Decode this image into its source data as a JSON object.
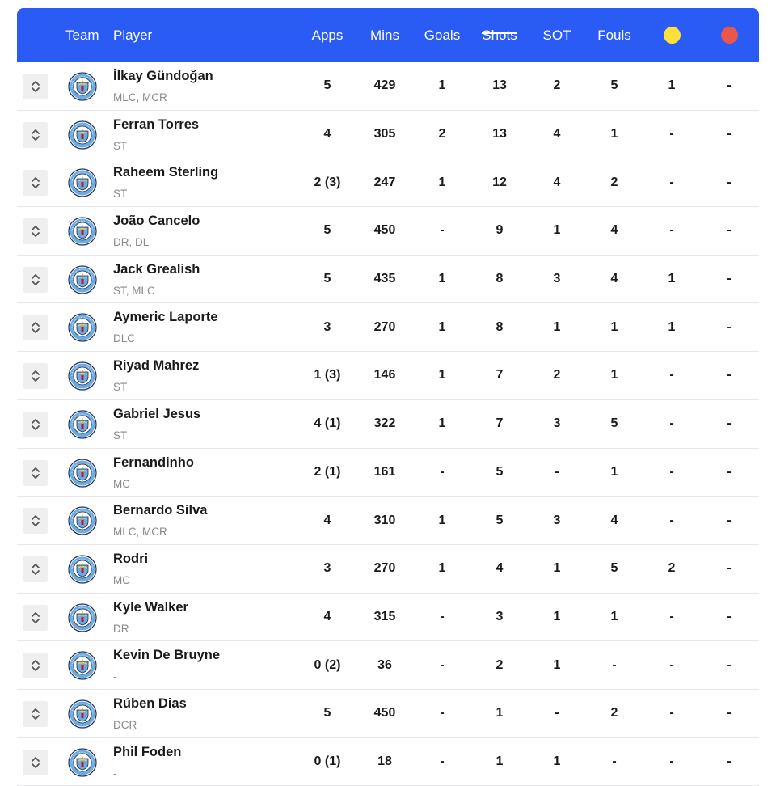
{
  "header": {
    "team": "Team",
    "player": "Player",
    "apps": "Apps",
    "mins": "Mins",
    "goals": "Goals",
    "shots": "Shots",
    "sot": "SOT",
    "fouls": "Fouls",
    "yellow_color": "#ffe03a",
    "red_color": "#e8574a"
  },
  "colors": {
    "header_bg": "#2a5bf5",
    "sort_btn_bg": "#efefef",
    "position_text": "#8a8a8a"
  },
  "icons": {
    "sort": "sort-updown-icon",
    "team_crest": "manchester-city-crest-icon"
  },
  "rows": [
    {
      "name": "İlkay Gündoğan",
      "pos": "MLC, MCR",
      "apps": "5",
      "mins": "429",
      "goals": "1",
      "shots": "13",
      "sot": "2",
      "fouls": "5",
      "yc": "1",
      "rc": "-"
    },
    {
      "name": "Ferran Torres",
      "pos": "ST",
      "apps": "4",
      "mins": "305",
      "goals": "2",
      "shots": "13",
      "sot": "4",
      "fouls": "1",
      "yc": "-",
      "rc": "-"
    },
    {
      "name": "Raheem Sterling",
      "pos": "ST",
      "apps": "2 (3)",
      "mins": "247",
      "goals": "1",
      "shots": "12",
      "sot": "4",
      "fouls": "2",
      "yc": "-",
      "rc": "-"
    },
    {
      "name": "João Cancelo",
      "pos": "DR, DL",
      "apps": "5",
      "mins": "450",
      "goals": "-",
      "shots": "9",
      "sot": "1",
      "fouls": "4",
      "yc": "-",
      "rc": "-"
    },
    {
      "name": "Jack Grealish",
      "pos": "ST, MLC",
      "apps": "5",
      "mins": "435",
      "goals": "1",
      "shots": "8",
      "sot": "3",
      "fouls": "4",
      "yc": "1",
      "rc": "-"
    },
    {
      "name": "Aymeric Laporte",
      "pos": "DLC",
      "apps": "3",
      "mins": "270",
      "goals": "1",
      "shots": "8",
      "sot": "1",
      "fouls": "1",
      "yc": "1",
      "rc": "-"
    },
    {
      "name": "Riyad Mahrez",
      "pos": "ST",
      "apps": "1 (3)",
      "mins": "146",
      "goals": "1",
      "shots": "7",
      "sot": "2",
      "fouls": "1",
      "yc": "-",
      "rc": "-"
    },
    {
      "name": "Gabriel Jesus",
      "pos": "ST",
      "apps": "4 (1)",
      "mins": "322",
      "goals": "1",
      "shots": "7",
      "sot": "3",
      "fouls": "5",
      "yc": "-",
      "rc": "-"
    },
    {
      "name": "Fernandinho",
      "pos": "MC",
      "apps": "2 (1)",
      "mins": "161",
      "goals": "-",
      "shots": "5",
      "sot": "-",
      "fouls": "1",
      "yc": "-",
      "rc": "-"
    },
    {
      "name": "Bernardo Silva",
      "pos": "MLC, MCR",
      "apps": "4",
      "mins": "310",
      "goals": "1",
      "shots": "5",
      "sot": "3",
      "fouls": "4",
      "yc": "-",
      "rc": "-"
    },
    {
      "name": "Rodri",
      "pos": "MC",
      "apps": "3",
      "mins": "270",
      "goals": "1",
      "shots": "4",
      "sot": "1",
      "fouls": "5",
      "yc": "2",
      "rc": "-"
    },
    {
      "name": "Kyle Walker",
      "pos": "DR",
      "apps": "4",
      "mins": "315",
      "goals": "-",
      "shots": "3",
      "sot": "1",
      "fouls": "1",
      "yc": "-",
      "rc": "-"
    },
    {
      "name": "Kevin De Bruyne",
      "pos": "-",
      "apps": "0 (2)",
      "mins": "36",
      "goals": "-",
      "shots": "2",
      "sot": "1",
      "fouls": "-",
      "yc": "-",
      "rc": "-"
    },
    {
      "name": "Rúben Dias",
      "pos": "DCR",
      "apps": "5",
      "mins": "450",
      "goals": "-",
      "shots": "1",
      "sot": "-",
      "fouls": "2",
      "yc": "-",
      "rc": "-"
    },
    {
      "name": "Phil Foden",
      "pos": "-",
      "apps": "0 (1)",
      "mins": "18",
      "goals": "-",
      "shots": "1",
      "sot": "1",
      "fouls": "-",
      "yc": "-",
      "rc": "-"
    }
  ]
}
